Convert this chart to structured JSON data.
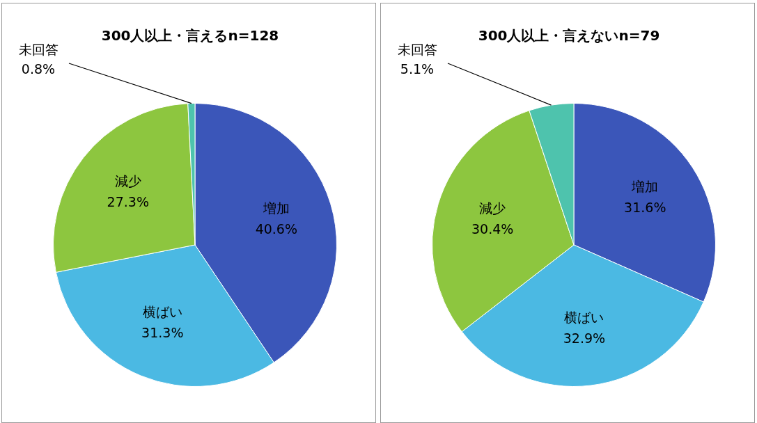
{
  "chart_data": [
    {
      "type": "pie",
      "title": "300人以上・言えるn=128",
      "categories": [
        "増加",
        "横ばい",
        "減少",
        "未回答"
      ],
      "values": [
        40.6,
        31.3,
        27.3,
        0.8
      ],
      "colors": [
        "#3b56b9",
        "#4bb9e3",
        "#8dc63f",
        "#4ec3ad"
      ],
      "value_labels": [
        "40.6%",
        "31.3%",
        "27.3%",
        "0.8%"
      ],
      "legend": false
    },
    {
      "type": "pie",
      "title": "300人以上・言えないn=79",
      "categories": [
        "増加",
        "横ばい",
        "減少",
        "未回答"
      ],
      "values": [
        31.6,
        32.9,
        30.4,
        5.1
      ],
      "colors": [
        "#3b56b9",
        "#4bb9e3",
        "#8dc63f",
        "#4ec3ad"
      ],
      "value_labels": [
        "31.6%",
        "32.9%",
        "30.4%",
        "5.1%"
      ],
      "legend": false
    }
  ]
}
